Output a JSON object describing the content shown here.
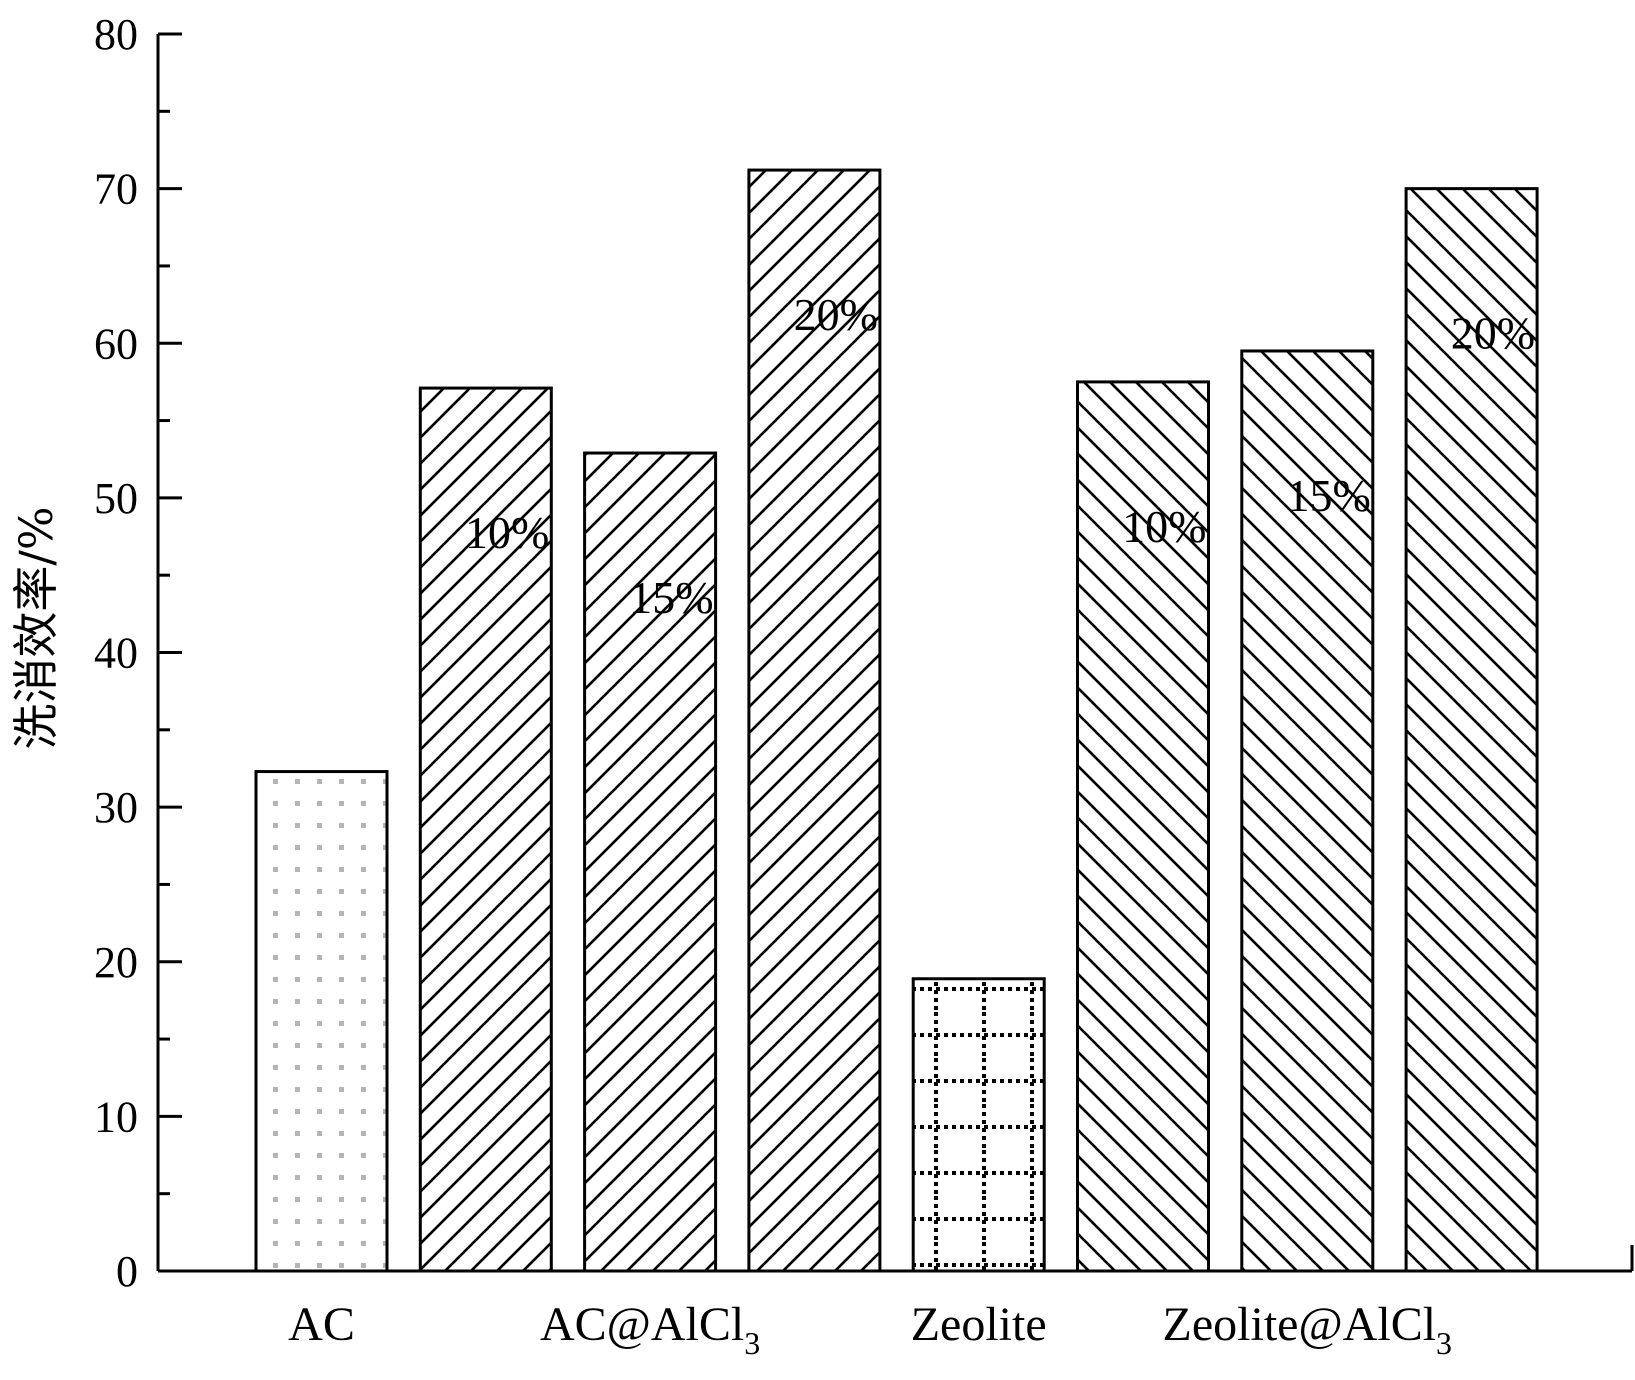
{
  "chart_data": {
    "type": "bar",
    "ylabel": "洗消效率/%",
    "ylim": [
      0,
      80
    ],
    "y_ticks": [
      "0",
      "10",
      "20",
      "30",
      "40",
      "50",
      "60",
      "70",
      "80"
    ],
    "groups": [
      {
        "label": "AC",
        "sub": "",
        "bars": [
          {
            "value": 32.3,
            "label": "",
            "pattern": "dots"
          }
        ]
      },
      {
        "label": "AC@AlCl",
        "sub": "3",
        "bars": [
          {
            "value": 57.1,
            "label": "10%",
            "pattern": "hatch-right"
          },
          {
            "value": 52.9,
            "label": "15%",
            "pattern": "hatch-right"
          },
          {
            "value": 71.2,
            "label": "20%",
            "pattern": "hatch-right"
          }
        ]
      },
      {
        "label": "Zeolite",
        "sub": "",
        "bars": [
          {
            "value": 18.9,
            "label": "",
            "pattern": "grid"
          }
        ]
      },
      {
        "label": "Zeolite@AlCl",
        "sub": "3",
        "bars": [
          {
            "value": 57.5,
            "label": "10%",
            "pattern": "hatch-left"
          },
          {
            "value": 59.5,
            "label": "15%",
            "pattern": "hatch-left"
          },
          {
            "value": 70.0,
            "label": "20%",
            "pattern": "hatch-left"
          }
        ]
      }
    ],
    "grid": false,
    "legend": "none"
  }
}
